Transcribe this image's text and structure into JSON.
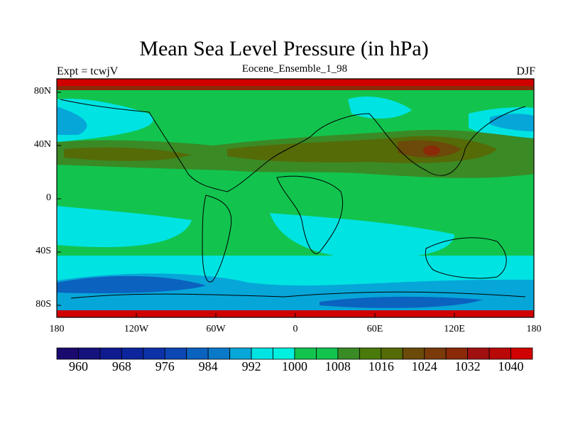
{
  "title": "Mean Sea Level Pressure (in hPa)",
  "left_label": "Expt = tcwjV",
  "center_label": "Eocene_Ensemble_1_98",
  "right_label": "DJF",
  "y_ticks": [
    "80N",
    "40N",
    "0",
    "40S",
    "80S"
  ],
  "x_ticks": [
    "180",
    "120W",
    "60W",
    "0",
    "60E",
    "120E",
    "180"
  ],
  "colorbar": {
    "labels": [
      "960",
      "968",
      "976",
      "984",
      "992",
      "1000",
      "1008",
      "1016",
      "1024",
      "1032",
      "1040"
    ],
    "colors": [
      "#1a0a6e",
      "#15127e",
      "#0f1a8e",
      "#0c259c",
      "#0c31a8",
      "#0c47b4",
      "#0b62bf",
      "#0a79c8",
      "#07a6d8",
      "#00e3e3",
      "#00f0e0",
      "#12c44e",
      "#12c44e",
      "#3a8a26",
      "#4a7a0a",
      "#556b08",
      "#6b4a0a",
      "#7a3a0a",
      "#8a2a08",
      "#a01010",
      "#b80808",
      "#d00000"
    ]
  },
  "colors": {
    "ocean_low": "#0b62bf",
    "ocean_mid": "#07a6d8",
    "cyan": "#00e3e3",
    "green": "#12c44e",
    "olive": "#3a8a26",
    "brown": "#6b4a0a",
    "red": "#d00000"
  }
}
